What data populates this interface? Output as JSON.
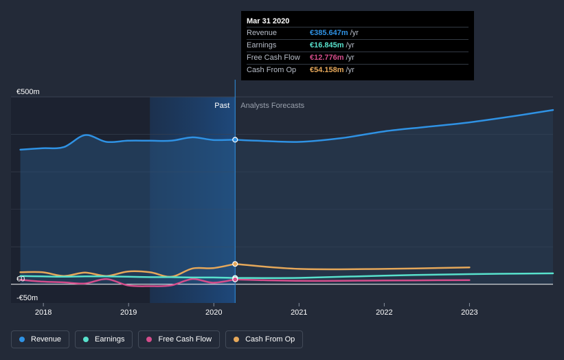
{
  "chart_data": {
    "type": "line",
    "currency": "€",
    "y_axis": {
      "ylim": [
        -50,
        500
      ],
      "ticks": [
        {
          "value": 500,
          "label": "€500m"
        },
        {
          "value": 0,
          "label": "€0"
        },
        {
          "value": -50,
          "label": "-€50m"
        }
      ]
    },
    "x_axis": {
      "xlim": [
        2017.62,
        2023.98
      ],
      "ticks": [
        {
          "value": 2018,
          "label": "2018"
        },
        {
          "value": 2019,
          "label": "2019"
        },
        {
          "value": 2020,
          "label": "2020"
        },
        {
          "value": 2021,
          "label": "2021"
        },
        {
          "value": 2022,
          "label": "2022"
        },
        {
          "value": 2023,
          "label": "2023"
        }
      ]
    },
    "split_x": 2020.25,
    "highlight_start_x": 2019.25,
    "past_label": "Past",
    "forecast_label": "Analysts Forecasts",
    "series": [
      {
        "name": "Revenue",
        "color": "#2f92e4",
        "points": [
          [
            2017.73,
            359
          ],
          [
            2017.99,
            363
          ],
          [
            2018.24,
            366
          ],
          [
            2018.49,
            398
          ],
          [
            2018.74,
            380
          ],
          [
            2018.99,
            383
          ],
          [
            2019.25,
            383
          ],
          [
            2019.5,
            383
          ],
          [
            2019.75,
            392
          ],
          [
            2019.99,
            385
          ],
          [
            2020.25,
            385.6
          ]
        ],
        "forecast": [
          [
            2020.25,
            385.6
          ],
          [
            2020.5,
            383
          ],
          [
            2021.0,
            380
          ],
          [
            2021.5,
            390
          ],
          [
            2022.0,
            408
          ],
          [
            2022.5,
            420
          ],
          [
            2023.0,
            432
          ],
          [
            2023.5,
            448
          ],
          [
            2023.98,
            465
          ]
        ]
      },
      {
        "name": "Earnings",
        "color": "#58e1cc",
        "points": [
          [
            2017.73,
            22
          ],
          [
            2017.99,
            21
          ],
          [
            2018.24,
            20
          ],
          [
            2018.49,
            21
          ],
          [
            2018.74,
            21
          ],
          [
            2018.99,
            20
          ],
          [
            2019.25,
            19
          ],
          [
            2019.5,
            19
          ],
          [
            2019.75,
            18
          ],
          [
            2019.99,
            18
          ],
          [
            2020.25,
            16.8
          ]
        ],
        "forecast": [
          [
            2020.25,
            16.8
          ],
          [
            2021.0,
            17
          ],
          [
            2022.0,
            23
          ],
          [
            2023.0,
            27
          ],
          [
            2023.98,
            29
          ]
        ]
      },
      {
        "name": "Free Cash Flow",
        "color": "#d44d8b",
        "points": [
          [
            2017.73,
            12
          ],
          [
            2017.99,
            7
          ],
          [
            2018.24,
            5
          ],
          [
            2018.49,
            2
          ],
          [
            2018.74,
            14
          ],
          [
            2018.99,
            -3
          ],
          [
            2019.25,
            -5
          ],
          [
            2019.5,
            -3
          ],
          [
            2019.75,
            14
          ],
          [
            2019.99,
            4
          ],
          [
            2020.25,
            12.8
          ]
        ],
        "forecast": [
          [
            2020.25,
            12.8
          ],
          [
            2021.0,
            9
          ],
          [
            2022.0,
            10
          ],
          [
            2023.0,
            11
          ]
        ]
      },
      {
        "name": "Cash From Op",
        "color": "#e6a85a",
        "points": [
          [
            2017.73,
            32
          ],
          [
            2017.99,
            32
          ],
          [
            2018.24,
            22
          ],
          [
            2018.49,
            31
          ],
          [
            2018.74,
            22
          ],
          [
            2018.99,
            34
          ],
          [
            2019.25,
            32
          ],
          [
            2019.5,
            20
          ],
          [
            2019.75,
            42
          ],
          [
            2019.99,
            43
          ],
          [
            2020.25,
            54.2
          ]
        ],
        "forecast": [
          [
            2020.25,
            54.2
          ],
          [
            2021.0,
            41
          ],
          [
            2022.0,
            41
          ],
          [
            2023.0,
            45
          ]
        ]
      }
    ]
  },
  "tooltip": {
    "date": "Mar 31 2020",
    "unit": "/yr",
    "rows": [
      {
        "label": "Revenue",
        "value": "€385.647m",
        "color": "#2f92e4"
      },
      {
        "label": "Earnings",
        "value": "€16.845m",
        "color": "#58e1cc"
      },
      {
        "label": "Free Cash Flow",
        "value": "€12.776m",
        "color": "#d44d8b"
      },
      {
        "label": "Cash From Op",
        "value": "€54.158m",
        "color": "#e6a85a"
      }
    ]
  },
  "legend": [
    {
      "label": "Revenue",
      "color": "#2f92e4"
    },
    {
      "label": "Earnings",
      "color": "#58e1cc"
    },
    {
      "label": "Free Cash Flow",
      "color": "#d44d8b"
    },
    {
      "label": "Cash From Op",
      "color": "#e6a85a"
    }
  ]
}
